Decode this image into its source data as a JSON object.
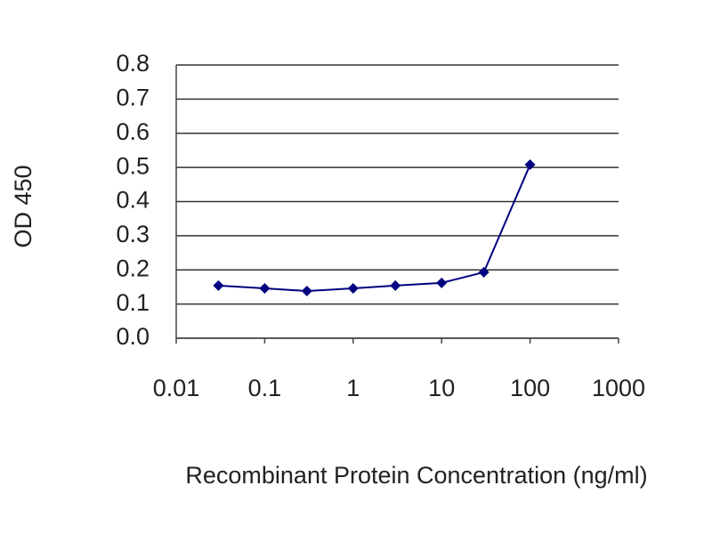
{
  "chart_data": {
    "type": "line",
    "x_label": "Recombinant Protein Concentration (ng/ml)",
    "y_label": "OD 450",
    "x": [
      0.03,
      0.1,
      0.3,
      1,
      3,
      10,
      30,
      100
    ],
    "series": [
      {
        "color": "#000080",
        "values": [
          0.154,
          0.146,
          0.138,
          0.146,
          0.154,
          0.162,
          0.193,
          0.508
        ]
      }
    ],
    "xlim": [
      0.01,
      1000
    ],
    "xticks": [
      0.01,
      0.1,
      1,
      10,
      100,
      1000
    ],
    "xscale": "log",
    "ylim": [
      0,
      0.8
    ],
    "yticks": [
      {
        "value": 0,
        "label": "0.0"
      },
      0.1,
      0.2,
      0.3,
      0.4,
      0.5,
      0.6,
      0.7,
      0.8
    ],
    "grid": true
  }
}
